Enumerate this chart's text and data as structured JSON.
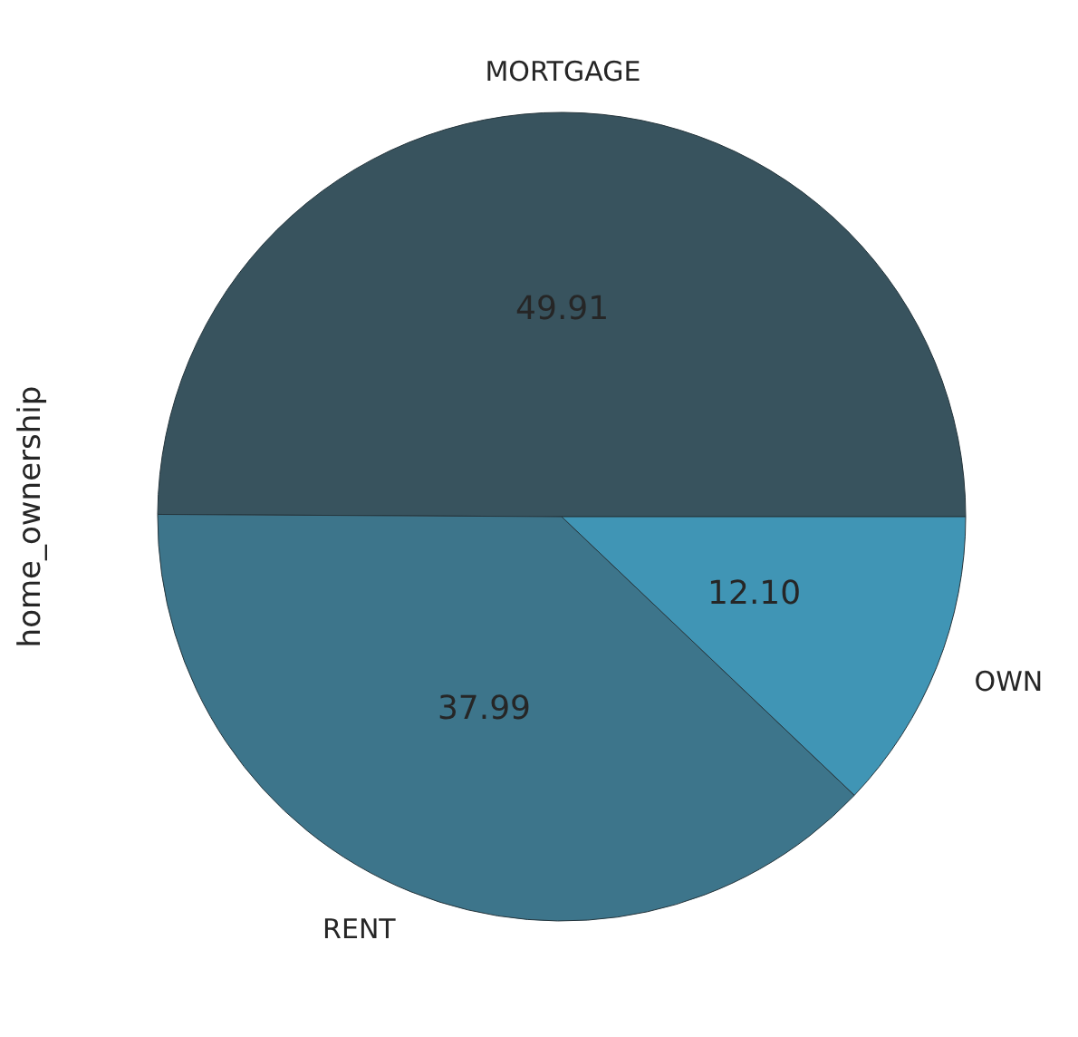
{
  "chart_data": {
    "type": "pie",
    "ylabel": "home_ownership",
    "categories": [
      "MORTGAGE",
      "RENT",
      "OWN"
    ],
    "values": [
      49.91,
      37.99,
      12.1
    ],
    "value_labels": [
      "49.91",
      "37.99",
      "12.10"
    ],
    "colors": [
      "#38535e",
      "#3d758b",
      "#4095b5"
    ],
    "legend": false
  }
}
